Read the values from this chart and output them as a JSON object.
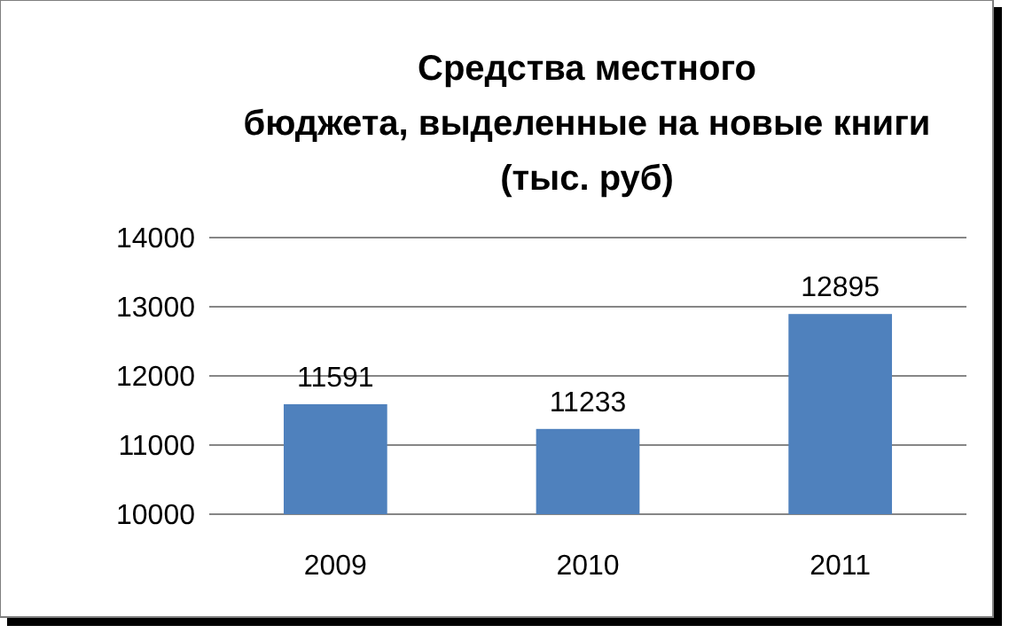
{
  "chart_data": {
    "type": "bar",
    "title": "Средства местного\nбюджета, выделенные на новые книги\n(тыс. руб)",
    "categories": [
      "2009",
      "2010",
      "2011"
    ],
    "values": [
      11591,
      11233,
      12895
    ],
    "color": "#4f81bd",
    "ylim": [
      10000,
      14000
    ],
    "yticks": [
      10000,
      11000,
      12000,
      13000,
      14000
    ],
    "grid": "y",
    "data_labels": true
  }
}
